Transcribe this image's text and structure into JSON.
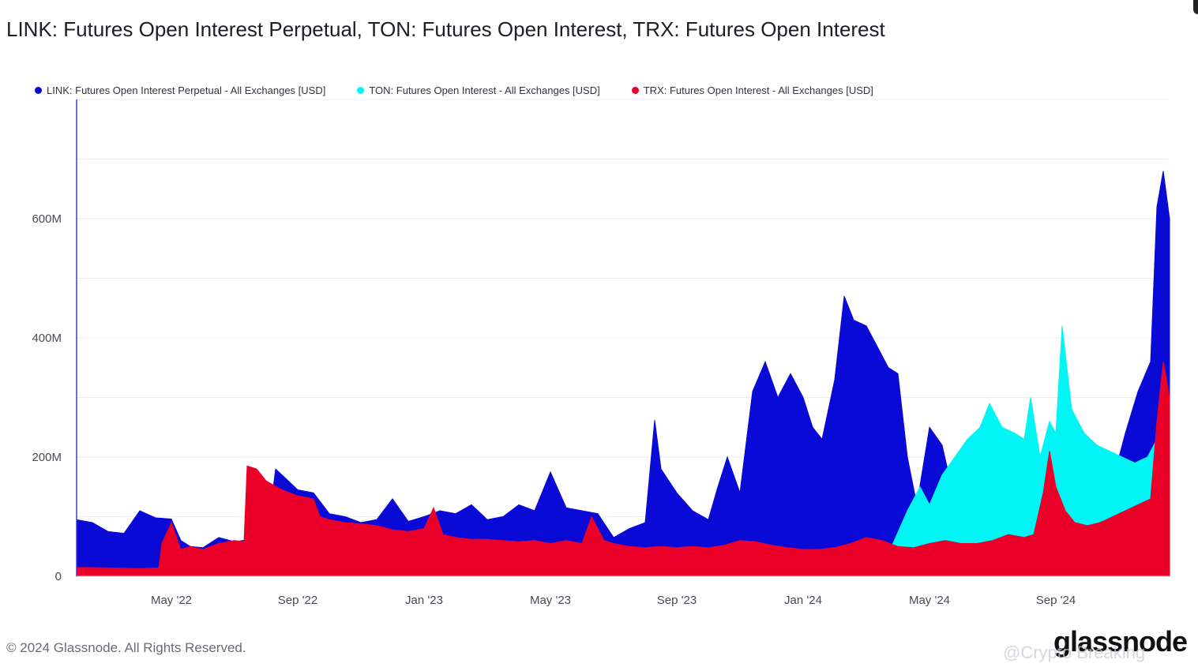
{
  "chart_title": "LINK: Futures Open Interest Perpetual, TON: Futures Open Interest, TRX: Futures Open Interest",
  "footer": "© 2024 Glassnode. All Rights Reserved.",
  "logo": "glassnode",
  "watermark": "@Crypto Breaking",
  "chart_data": {
    "type": "area",
    "title": "LINK: Futures Open Interest Perpetual, TON: Futures Open Interest, TRX: Futures Open Interest",
    "xlabel": "",
    "ylabel": "",
    "ylim": [
      0,
      800
    ],
    "y_unit": "M USD",
    "x_domain_months": [
      0,
      34.6
    ],
    "x_ticks": [
      {
        "label": "May '22",
        "month": 3.0
      },
      {
        "label": "Sep '22",
        "month": 7.0
      },
      {
        "label": "Jan '23",
        "month": 11.0
      },
      {
        "label": "May '23",
        "month": 15.0
      },
      {
        "label": "Sep '23",
        "month": 19.0
      },
      {
        "label": "Jan '24",
        "month": 23.0
      },
      {
        "label": "May '24",
        "month": 27.0
      },
      {
        "label": "Sep '24",
        "month": 31.0
      }
    ],
    "y_ticks": [
      {
        "label": "0",
        "value": 0
      },
      {
        "label": "200M",
        "value": 200
      },
      {
        "label": "400M",
        "value": 400
      },
      {
        "label": "600M",
        "value": 600
      }
    ],
    "grid_values": [
      0,
      100,
      200,
      300,
      400,
      500,
      600,
      700,
      800
    ],
    "grid": true,
    "legend_position": "top-left",
    "series": [
      {
        "name": "LINK: Futures Open Interest Perpetual - All Exchanges [USD]",
        "color": "#0a0ad6",
        "points": [
          [
            0,
            95
          ],
          [
            0.5,
            90
          ],
          [
            1,
            75
          ],
          [
            1.5,
            72
          ],
          [
            2,
            110
          ],
          [
            2.5,
            98
          ],
          [
            3,
            96
          ],
          [
            3.3,
            60
          ],
          [
            3.6,
            50
          ],
          [
            4,
            48
          ],
          [
            4.5,
            65
          ],
          [
            5,
            58
          ],
          [
            5.5,
            62
          ],
          [
            6,
            55
          ],
          [
            6.3,
            180
          ],
          [
            6.6,
            165
          ],
          [
            7,
            145
          ],
          [
            7.5,
            140
          ],
          [
            8,
            105
          ],
          [
            8.5,
            100
          ],
          [
            9,
            90
          ],
          [
            9.5,
            95
          ],
          [
            10,
            130
          ],
          [
            10.5,
            92
          ],
          [
            11,
            100
          ],
          [
            11.5,
            110
          ],
          [
            12,
            105
          ],
          [
            12.5,
            120
          ],
          [
            13,
            95
          ],
          [
            13.5,
            100
          ],
          [
            14,
            120
          ],
          [
            14.5,
            110
          ],
          [
            15,
            175
          ],
          [
            15.5,
            115
          ],
          [
            16,
            110
          ],
          [
            16.5,
            105
          ],
          [
            17,
            65
          ],
          [
            17.5,
            80
          ],
          [
            18,
            90
          ],
          [
            18.3,
            262
          ],
          [
            18.5,
            180
          ],
          [
            19,
            140
          ],
          [
            19.5,
            110
          ],
          [
            20,
            95
          ],
          [
            20.3,
            150
          ],
          [
            20.6,
            200
          ],
          [
            21,
            140
          ],
          [
            21.4,
            310
          ],
          [
            21.8,
            360
          ],
          [
            22.2,
            300
          ],
          [
            22.6,
            340
          ],
          [
            23,
            300
          ],
          [
            23.3,
            250
          ],
          [
            23.6,
            230
          ],
          [
            24,
            330
          ],
          [
            24.3,
            470
          ],
          [
            24.6,
            430
          ],
          [
            25,
            420
          ],
          [
            25.4,
            380
          ],
          [
            25.7,
            350
          ],
          [
            26,
            340
          ],
          [
            26.3,
            200
          ],
          [
            26.6,
            120
          ],
          [
            27,
            250
          ],
          [
            27.4,
            220
          ],
          [
            27.7,
            150
          ],
          [
            28,
            80
          ],
          [
            28.4,
            120
          ],
          [
            28.8,
            90
          ],
          [
            29.2,
            90
          ],
          [
            29.6,
            70
          ],
          [
            30,
            60
          ],
          [
            30.4,
            70
          ],
          [
            30.7,
            70
          ],
          [
            31,
            75
          ],
          [
            31.3,
            70
          ],
          [
            31.6,
            75
          ],
          [
            32,
            110
          ],
          [
            32.4,
            140
          ],
          [
            32.8,
            160
          ],
          [
            33.2,
            240
          ],
          [
            33.6,
            310
          ],
          [
            34,
            360
          ],
          [
            34.2,
            620
          ],
          [
            34.4,
            680
          ],
          [
            34.6,
            600
          ]
        ]
      },
      {
        "name": "TON: Futures Open Interest - All Exchanges [USD]",
        "color": "#00f5f5",
        "points": [
          [
            0,
            0
          ],
          [
            25.8,
            0
          ],
          [
            25.8,
            50
          ],
          [
            26.3,
            110
          ],
          [
            26.7,
            150
          ],
          [
            27,
            120
          ],
          [
            27.4,
            170
          ],
          [
            27.8,
            200
          ],
          [
            28.2,
            230
          ],
          [
            28.6,
            250
          ],
          [
            28.9,
            290
          ],
          [
            29.3,
            250
          ],
          [
            29.7,
            240
          ],
          [
            30,
            230
          ],
          [
            30.2,
            300
          ],
          [
            30.5,
            200
          ],
          [
            30.8,
            260
          ],
          [
            31,
            240
          ],
          [
            31.2,
            420
          ],
          [
            31.5,
            280
          ],
          [
            31.9,
            240
          ],
          [
            32.3,
            220
          ],
          [
            32.7,
            210
          ],
          [
            33.1,
            200
          ],
          [
            33.5,
            190
          ],
          [
            33.9,
            200
          ],
          [
            34.2,
            230
          ],
          [
            34.6,
            230
          ]
        ]
      },
      {
        "name": "TRX: Futures Open Interest - All Exchanges [USD]",
        "color": "#ea0029",
        "points": [
          [
            0,
            15
          ],
          [
            1,
            14
          ],
          [
            2,
            13
          ],
          [
            2.6,
            14
          ],
          [
            2.7,
            55
          ],
          [
            3,
            90
          ],
          [
            3.3,
            45
          ],
          [
            3.6,
            50
          ],
          [
            4,
            45
          ],
          [
            4.5,
            55
          ],
          [
            5,
            60
          ],
          [
            5.3,
            58
          ],
          [
            5.4,
            185
          ],
          [
            5.7,
            180
          ],
          [
            6,
            160
          ],
          [
            6.5,
            145
          ],
          [
            7,
            135
          ],
          [
            7.5,
            130
          ],
          [
            7.7,
            100
          ],
          [
            8,
            95
          ],
          [
            8.5,
            90
          ],
          [
            9,
            88
          ],
          [
            9.5,
            85
          ],
          [
            10,
            78
          ],
          [
            10.5,
            75
          ],
          [
            11,
            80
          ],
          [
            11.3,
            115
          ],
          [
            11.6,
            70
          ],
          [
            12,
            65
          ],
          [
            12.5,
            62
          ],
          [
            13,
            62
          ],
          [
            13.5,
            60
          ],
          [
            14,
            58
          ],
          [
            14.5,
            60
          ],
          [
            15,
            55
          ],
          [
            15.5,
            60
          ],
          [
            16,
            55
          ],
          [
            16.3,
            100
          ],
          [
            16.7,
            60
          ],
          [
            17,
            55
          ],
          [
            17.5,
            50
          ],
          [
            18,
            48
          ],
          [
            18.5,
            50
          ],
          [
            19,
            48
          ],
          [
            19.5,
            50
          ],
          [
            20,
            48
          ],
          [
            20.5,
            52
          ],
          [
            21,
            60
          ],
          [
            21.5,
            58
          ],
          [
            22,
            52
          ],
          [
            22.5,
            48
          ],
          [
            23,
            45
          ],
          [
            23.5,
            45
          ],
          [
            24,
            48
          ],
          [
            24.5,
            55
          ],
          [
            25,
            65
          ],
          [
            25.5,
            60
          ],
          [
            26,
            50
          ],
          [
            26.5,
            48
          ],
          [
            27,
            55
          ],
          [
            27.5,
            60
          ],
          [
            28,
            55
          ],
          [
            28.5,
            55
          ],
          [
            29,
            60
          ],
          [
            29.5,
            70
          ],
          [
            30,
            65
          ],
          [
            30.3,
            70
          ],
          [
            30.6,
            140
          ],
          [
            30.8,
            210
          ],
          [
            31,
            150
          ],
          [
            31.3,
            110
          ],
          [
            31.6,
            90
          ],
          [
            32,
            85
          ],
          [
            32.4,
            90
          ],
          [
            32.8,
            100
          ],
          [
            33.2,
            110
          ],
          [
            33.6,
            120
          ],
          [
            34,
            130
          ],
          [
            34.2,
            260
          ],
          [
            34.4,
            360
          ],
          [
            34.6,
            300
          ]
        ]
      }
    ]
  }
}
